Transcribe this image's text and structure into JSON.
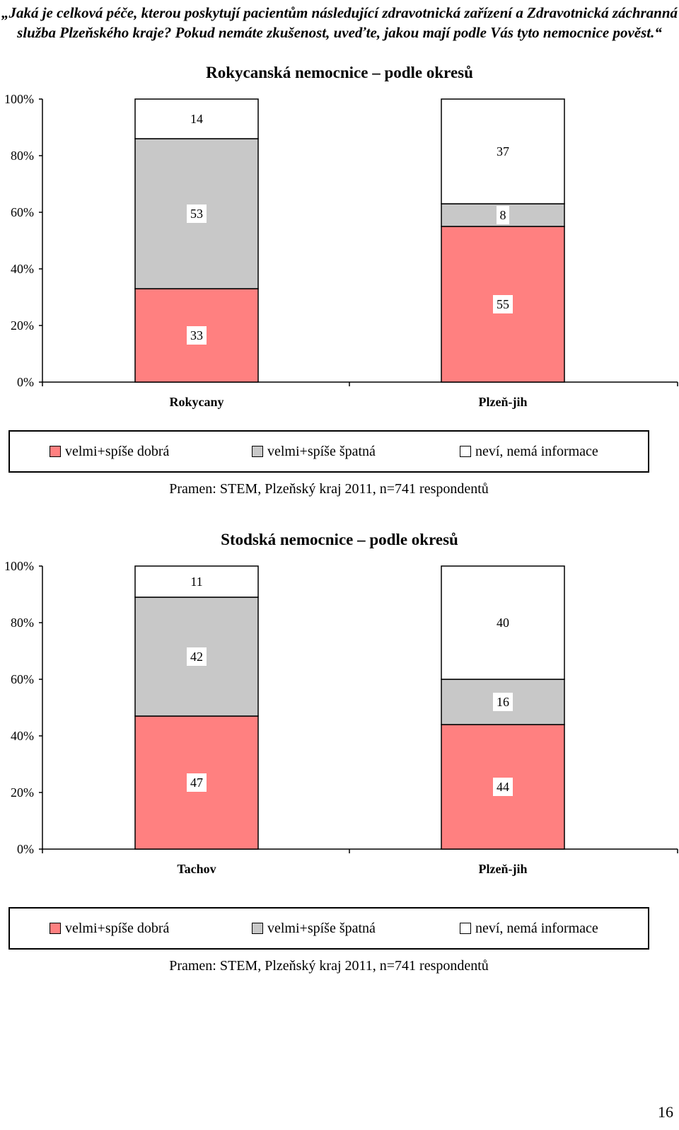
{
  "question": "„Jaká je celková péče, kterou poskytují pacientům následující zdravotnická zařízení a Zdravotnická záchranná služba Plzeňského kraje? Pokud nemáte zkušenost, uveďte, jakou mají podle Vás tyto nemocnice pověst.“",
  "legend": [
    {
      "label": "velmi+spíše dobrá",
      "color": "#ff8080"
    },
    {
      "label": "velmi+spíše špatná",
      "color": "#c8c8c8"
    },
    {
      "label": "neví, nemá informace",
      "color": "#ffffff"
    }
  ],
  "source": "Pramen: STEM, Plzeňský kraj 2011,  n=741 respondentů",
  "page_number": "16",
  "chart_data": [
    {
      "type": "bar",
      "stacked": true,
      "title": "Rokycanská nemocnice – podle okresů",
      "categories": [
        "Rokycany",
        "Plzeň-jih"
      ],
      "series": [
        {
          "name": "velmi+spíše dobrá",
          "values": [
            33,
            55
          ]
        },
        {
          "name": "velmi+spíše špatná",
          "values": [
            53,
            8
          ]
        },
        {
          "name": "neví, nemá informace",
          "values": [
            14,
            37
          ]
        }
      ],
      "yticks": [
        "0%",
        "20%",
        "40%",
        "60%",
        "80%",
        "100%"
      ],
      "ylim": [
        0,
        100
      ],
      "grid": false,
      "legend_position": "bottom"
    },
    {
      "type": "bar",
      "stacked": true,
      "title": "Stodská nemocnice – podle okresů",
      "categories": [
        "Tachov",
        "Plzeň-jih"
      ],
      "series": [
        {
          "name": "velmi+spíše dobrá",
          "values": [
            47,
            44
          ]
        },
        {
          "name": "velmi+spíše špatná",
          "values": [
            42,
            16
          ]
        },
        {
          "name": "neví, nemá informace",
          "values": [
            11,
            40
          ]
        }
      ],
      "yticks": [
        "0%",
        "20%",
        "40%",
        "60%",
        "80%",
        "100%"
      ],
      "ylim": [
        0,
        100
      ],
      "grid": false,
      "legend_position": "bottom"
    }
  ]
}
